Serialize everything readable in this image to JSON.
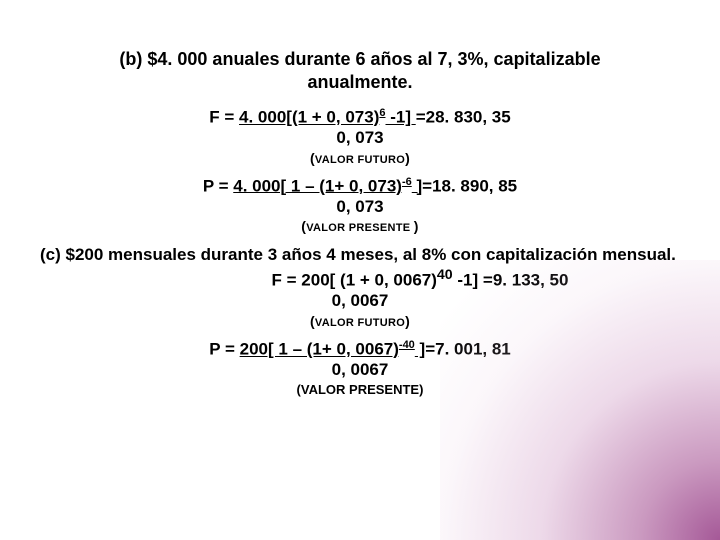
{
  "partB": {
    "heading": "(b) $4. 000 anuales durante 6 años al 7, 3%, capitalizable anualmente.",
    "future": {
      "prefix": "F = ",
      "underlined": "4. 000[(1 + 0, 073)",
      "exp": "6",
      "underlinedTail": " -1] ",
      "result": "=28. 830, 35",
      "divisor": "0, 073",
      "captionOpen": "(",
      "captionSmall": "VALOR FUTURO",
      "captionClose": ")"
    },
    "present": {
      "prefix": "P = ",
      "underlined": "4. 000[ 1 – (1+ 0, 073)",
      "exp": "-6",
      "underlinedTail": " ]",
      "result": "=18. 890, 85",
      "divisor": "0, 073",
      "captionOpen": "(",
      "captionSmall": "VALOR PRESENTE ",
      "captionClose": ")"
    }
  },
  "partC": {
    "heading": "(c) $200 mensuales durante 3 años 4 meses, al 8% con capitalización mensual.",
    "future": {
      "prefix": "F = ",
      "underlined": "200[ (1 + 0, 0067)",
      "exp": "40",
      "underlinedTail": " -1] ",
      "result": "=9. 133, 50",
      "divisor": "0, 0067",
      "captionOpen": "(",
      "captionSmall": "VALOR FUTURO",
      "captionClose": ")"
    },
    "present": {
      "prefix": "P = ",
      "underlined": "200[ 1 – (1+ 0, 0067)",
      "exp": "-40",
      "underlinedTail": " ]",
      "result": "=7. 001, 81",
      "divisor": "0, 0067",
      "caption": "(VALOR PRESENTE)"
    }
  }
}
